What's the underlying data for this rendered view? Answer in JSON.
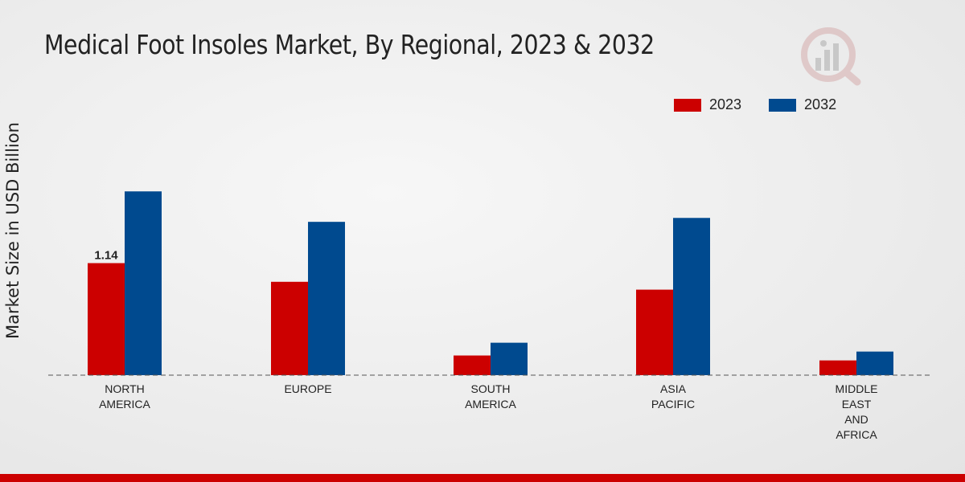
{
  "chart_data": {
    "type": "bar",
    "title": "Medical Foot Insoles Market, By Regional, 2023 & 2032",
    "ylabel": "Market Size in USD Billion",
    "xlabel": "",
    "categories": [
      [
        "NORTH",
        "AMERICA"
      ],
      [
        "EUROPE"
      ],
      [
        "SOUTH",
        "AMERICA"
      ],
      [
        "ASIA",
        "PACIFIC"
      ],
      [
        "MIDDLE",
        "EAST",
        "AND",
        "AFRICA"
      ]
    ],
    "series": [
      {
        "name": "2023",
        "color": "#cc0000",
        "values": [
          1.14,
          0.95,
          0.2,
          0.87,
          0.15
        ]
      },
      {
        "name": "2032",
        "color": "#004a8f",
        "values": [
          1.87,
          1.56,
          0.33,
          1.6,
          0.24
        ]
      }
    ],
    "data_labels": [
      {
        "series": 0,
        "index": 0,
        "text": "1.14"
      }
    ],
    "ylim": [
      0,
      3.0
    ],
    "legend_position": "top-right",
    "grid": false
  }
}
